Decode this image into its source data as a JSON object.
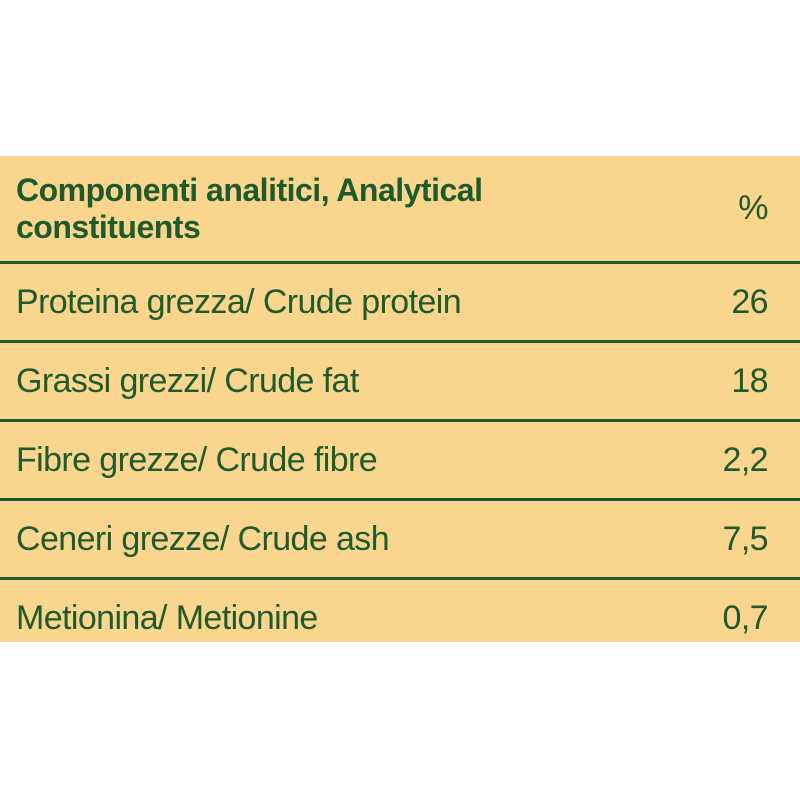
{
  "table": {
    "header": {
      "name": "Componenti analitici, Analytical constituents",
      "unit": "%"
    },
    "rows": [
      {
        "name": "Proteina grezza/ Crude protein",
        "value": "26"
      },
      {
        "name": "Grassi grezzi/ Crude fat",
        "value": "18"
      },
      {
        "name": "Fibre grezze/ Crude fibre",
        "value": "2,2"
      },
      {
        "name": "Ceneri grezze/ Crude ash",
        "value": "7,5"
      },
      {
        "name": "Metionina/ Metionine",
        "value": "0,7"
      }
    ]
  },
  "colors": {
    "background": "#f9d58e",
    "text": "#1f5a2c",
    "page": "#ffffff"
  }
}
